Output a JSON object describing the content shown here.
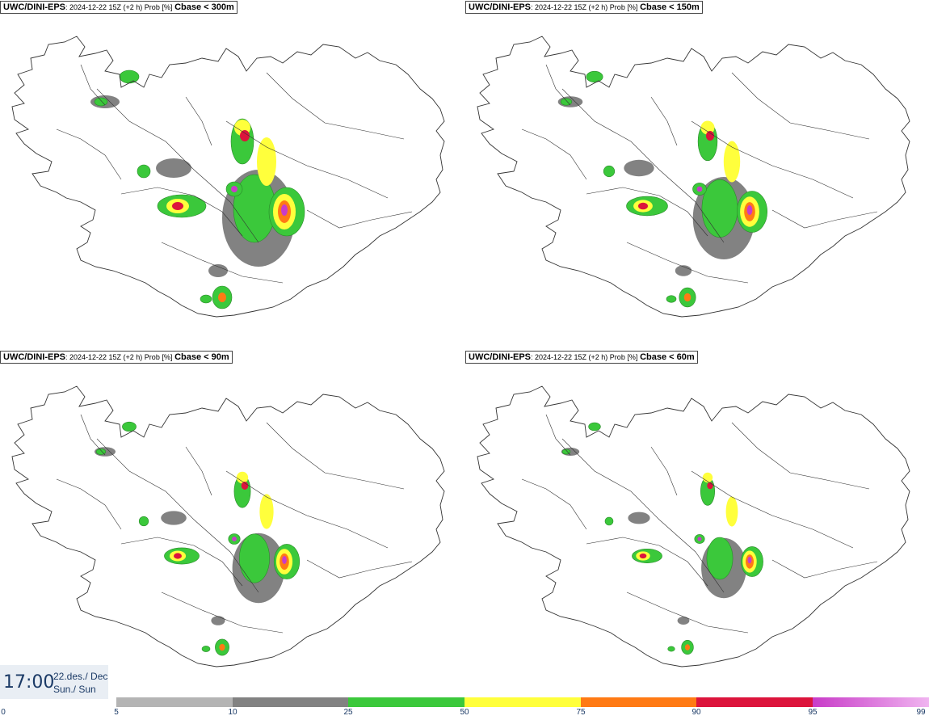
{
  "colors": {
    "c5": "#b4b4b4",
    "c10": "#828282",
    "c25": "#3bc83b",
    "c50": "#ffff3c",
    "c75": "#ff7a14",
    "c90": "#dc143c",
    "c95": "#c83cc8",
    "c99": "#f0b4f0",
    "coast": "#333333"
  },
  "panels": [
    {
      "model": "UWC/DINI-EPS",
      "meta": ": 2024-12-22 15Z (+2 h) Prob [%]",
      "threshold": "Cbase < 300m"
    },
    {
      "model": "UWC/DINI-EPS",
      "meta": ": 2024-12-22 15Z (+2 h) Prob [%]",
      "threshold": "Cbase < 150m"
    },
    {
      "model": "UWC/DINI-EPS",
      "meta": ": 2024-12-22 15Z (+2 h) Prob [%]",
      "threshold": "Cbase < 90m"
    },
    {
      "model": "UWC/DINI-EPS",
      "meta": ": 2024-12-22 15Z (+2 h) Prob [%]",
      "threshold": "Cbase < 60m"
    }
  ],
  "valid_time": {
    "clock": "17:00",
    "date": "22.des./ Dec",
    "day": "Sun./ Sun"
  },
  "colorbar": {
    "ticks": [
      "0",
      "5",
      "10",
      "25",
      "50",
      "75",
      "90",
      "95",
      "99"
    ],
    "levels": [
      0,
      5,
      10,
      25,
      50,
      75,
      90,
      95,
      99
    ]
  }
}
